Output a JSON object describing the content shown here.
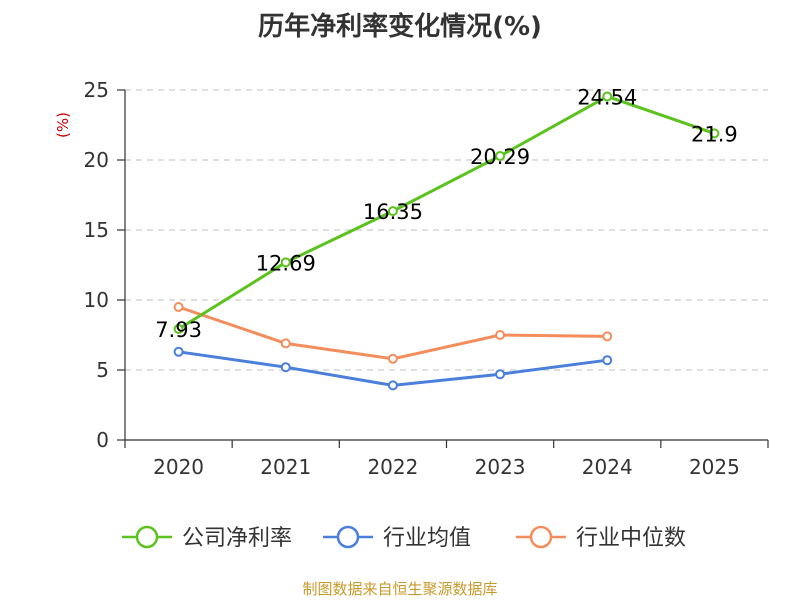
{
  "chart_data": {
    "type": "line",
    "title": "历年净利率变化情况(%)",
    "ylabel": "(%)",
    "xlabel": "",
    "categories": [
      "2020",
      "2021",
      "2022",
      "2023",
      "2024",
      "2025"
    ],
    "ylim": [
      0,
      25
    ],
    "yticks": [
      0,
      5,
      10,
      15,
      20,
      25
    ],
    "grid": true,
    "legend_position": "bottom",
    "series": [
      {
        "name": "公司净利率",
        "color": "#5BC21E",
        "values": [
          7.93,
          12.69,
          16.35,
          20.29,
          24.54,
          21.9
        ],
        "data_labels": [
          "7.93",
          "12.69",
          "16.35",
          "20.29",
          "24.54",
          "21.9"
        ]
      },
      {
        "name": "行业均值",
        "color": "#4A7FDC",
        "values": [
          6.3,
          5.2,
          3.9,
          4.7,
          5.7,
          null
        ]
      },
      {
        "name": "行业中位数",
        "color": "#F38D5B",
        "values": [
          9.5,
          6.9,
          5.8,
          7.5,
          7.4,
          null
        ]
      }
    ]
  },
  "colors": {
    "ylabel": "#CC0000",
    "source": "#C89A2A",
    "title": "#333333"
  },
  "footer": {
    "source": "制图数据来自恒生聚源数据库"
  }
}
